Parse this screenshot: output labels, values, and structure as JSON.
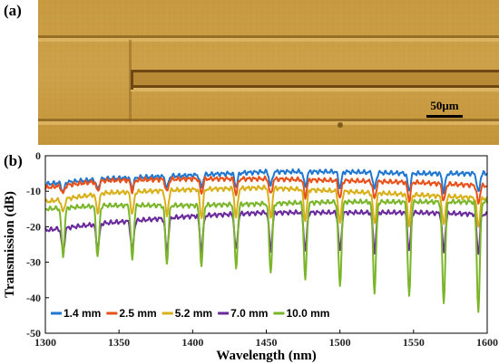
{
  "panel_a": {
    "label": "(a)",
    "scale_bar_label": "50μm",
    "colors": {
      "base": "#c89a3c",
      "light": "#d8ad55",
      "dark": "#7a5415"
    }
  },
  "panel_b": {
    "label": "(b)"
  },
  "chart_data": {
    "type": "line",
    "xlabel": "Wavelength (nm)",
    "ylabel": "Transmission (dB)",
    "xlim": [
      1300,
      1600
    ],
    "ylim": [
      -50,
      0
    ],
    "xticks": [
      1300,
      1350,
      1400,
      1450,
      1500,
      1550,
      1600
    ],
    "yticks": [
      0,
      -10,
      -20,
      -30,
      -40,
      -50
    ],
    "legend_position": "bottom-left",
    "grid": false,
    "fringe_period_nm": 23.5,
    "series": [
      {
        "name": "1.4 mm",
        "color": "#1f77d0",
        "baseline": [
          [
            1300,
            -8
          ],
          [
            1340,
            -6.5
          ],
          [
            1400,
            -5.5
          ],
          [
            1450,
            -4.5
          ],
          [
            1500,
            -4.5
          ],
          [
            1550,
            -5
          ],
          [
            1600,
            -5
          ]
        ],
        "dip_depth": [
          [
            1300,
            2.5
          ],
          [
            1400,
            3.5
          ],
          [
            1500,
            4.5
          ],
          [
            1600,
            5.5
          ]
        ]
      },
      {
        "name": "2.5 mm",
        "color": "#e8501a",
        "baseline": [
          [
            1300,
            -9
          ],
          [
            1340,
            -7
          ],
          [
            1400,
            -6.5
          ],
          [
            1450,
            -6.5
          ],
          [
            1500,
            -7
          ],
          [
            1550,
            -7.5
          ],
          [
            1600,
            -8.5
          ]
        ],
        "dip_depth": [
          [
            1300,
            2
          ],
          [
            1400,
            4
          ],
          [
            1500,
            5
          ],
          [
            1600,
            5
          ]
        ]
      },
      {
        "name": "5.2 mm",
        "color": "#d8b01a",
        "baseline": [
          [
            1300,
            -13
          ],
          [
            1340,
            -10.5
          ],
          [
            1400,
            -9.5
          ],
          [
            1450,
            -9
          ],
          [
            1500,
            -10
          ],
          [
            1550,
            -11
          ],
          [
            1600,
            -12
          ]
        ],
        "dip_depth": [
          [
            1300,
            3
          ],
          [
            1350,
            6
          ],
          [
            1400,
            8
          ],
          [
            1500,
            9
          ],
          [
            1600,
            8
          ]
        ]
      },
      {
        "name": "7.0 mm",
        "color": "#6a2a9c",
        "baseline": [
          [
            1300,
            -21
          ],
          [
            1340,
            -19
          ],
          [
            1400,
            -17
          ],
          [
            1450,
            -16
          ],
          [
            1500,
            -16
          ],
          [
            1550,
            -16
          ],
          [
            1600,
            -16.5
          ]
        ],
        "dip_depth": [
          [
            1300,
            6
          ],
          [
            1350,
            8
          ],
          [
            1400,
            10
          ],
          [
            1500,
            11
          ],
          [
            1600,
            11
          ]
        ]
      },
      {
        "name": "10.0 mm",
        "color": "#7ab52a",
        "baseline": [
          [
            1300,
            -15
          ],
          [
            1340,
            -14
          ],
          [
            1400,
            -14
          ],
          [
            1450,
            -13.5
          ],
          [
            1500,
            -13
          ],
          [
            1550,
            -13
          ],
          [
            1600,
            -13
          ]
        ],
        "dip_depth": [
          [
            1300,
            13
          ],
          [
            1350,
            15
          ],
          [
            1400,
            17
          ],
          [
            1450,
            19
          ],
          [
            1500,
            24
          ],
          [
            1550,
            27
          ],
          [
            1600,
            31
          ]
        ]
      }
    ]
  }
}
